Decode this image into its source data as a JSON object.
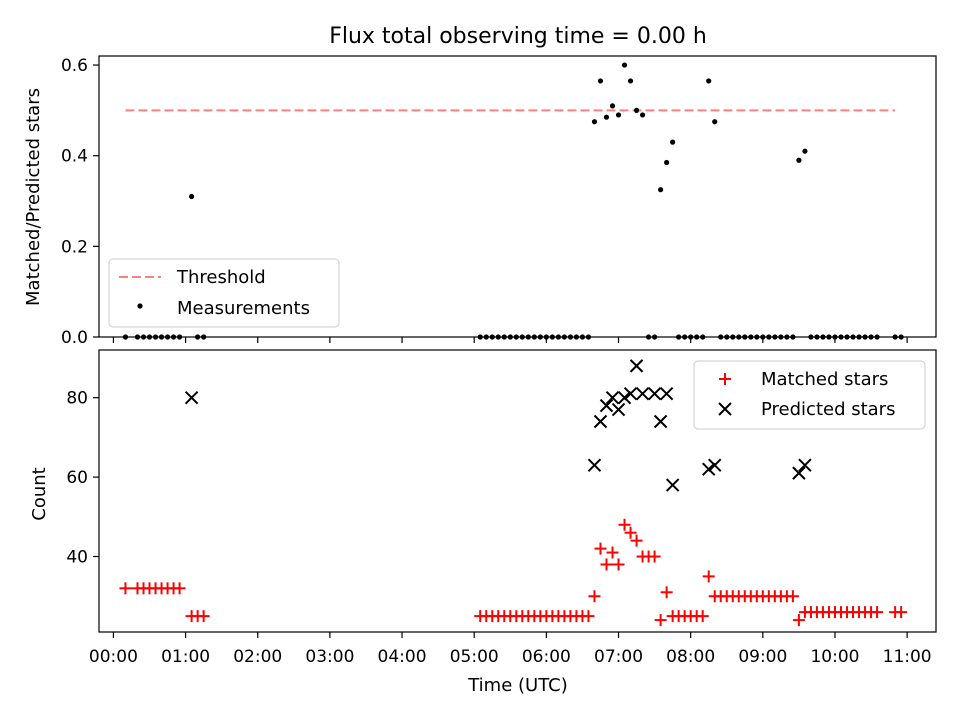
{
  "chart_data": [
    {
      "type": "line",
      "title": "Flux total observing time = 0.00 h",
      "ylabel": "Matched/Predicted stars",
      "xlabel": "",
      "ylim": [
        0,
        0.62
      ],
      "xlim": [
        "23:48",
        "11:24"
      ],
      "yticks": [
        "0.0",
        "0.2",
        "0.4",
        "0.6"
      ],
      "legend_position": "lower-left",
      "grid": false,
      "series": [
        {
          "name": "Threshold",
          "style": "dashed-line",
          "color": "#ff7f7f",
          "points": [
            [
              "00:10",
              0.5
            ],
            [
              "10:50",
              0.5
            ]
          ]
        },
        {
          "name": "Measurements",
          "style": "scatter-dot",
          "color": "#000000",
          "points": [
            [
              "00:10",
              0
            ],
            [
              "00:20",
              0
            ],
            [
              "00:25",
              0
            ],
            [
              "00:30",
              0
            ],
            [
              "00:35",
              0
            ],
            [
              "00:40",
              0
            ],
            [
              "00:45",
              0
            ],
            [
              "00:50",
              0
            ],
            [
              "00:55",
              0
            ],
            [
              "01:05",
              0.31
            ],
            [
              "01:10",
              0
            ],
            [
              "01:15",
              0
            ],
            [
              "05:05",
              0
            ],
            [
              "05:10",
              0
            ],
            [
              "05:15",
              0
            ],
            [
              "05:20",
              0
            ],
            [
              "05:25",
              0
            ],
            [
              "05:30",
              0
            ],
            [
              "05:35",
              0
            ],
            [
              "05:40",
              0
            ],
            [
              "05:45",
              0
            ],
            [
              "05:50",
              0
            ],
            [
              "05:55",
              0
            ],
            [
              "06:00",
              0
            ],
            [
              "06:05",
              0
            ],
            [
              "06:10",
              0
            ],
            [
              "06:15",
              0
            ],
            [
              "06:20",
              0
            ],
            [
              "06:25",
              0
            ],
            [
              "06:30",
              0
            ],
            [
              "06:35",
              0
            ],
            [
              "06:40",
              0.475
            ],
            [
              "06:45",
              0.565
            ],
            [
              "06:50",
              0.485
            ],
            [
              "06:55",
              0.51
            ],
            [
              "07:00",
              0.49
            ],
            [
              "07:05",
              0.6
            ],
            [
              "07:10",
              0.565
            ],
            [
              "07:15",
              0.5
            ],
            [
              "07:20",
              0.49
            ],
            [
              "07:25",
              0
            ],
            [
              "07:30",
              0
            ],
            [
              "07:35",
              0.325
            ],
            [
              "07:40",
              0.385
            ],
            [
              "07:45",
              0.43
            ],
            [
              "07:50",
              0
            ],
            [
              "07:55",
              0
            ],
            [
              "08:00",
              0
            ],
            [
              "08:05",
              0
            ],
            [
              "08:10",
              0
            ],
            [
              "08:15",
              0.565
            ],
            [
              "08:20",
              0.475
            ],
            [
              "08:25",
              0
            ],
            [
              "08:30",
              0
            ],
            [
              "08:35",
              0
            ],
            [
              "08:40",
              0
            ],
            [
              "08:45",
              0
            ],
            [
              "08:50",
              0
            ],
            [
              "08:55",
              0
            ],
            [
              "09:00",
              0
            ],
            [
              "09:05",
              0
            ],
            [
              "09:10",
              0
            ],
            [
              "09:15",
              0
            ],
            [
              "09:20",
              0
            ],
            [
              "09:25",
              0
            ],
            [
              "09:30",
              0.39
            ],
            [
              "09:35",
              0.41
            ],
            [
              "09:40",
              0
            ],
            [
              "09:45",
              0
            ],
            [
              "09:50",
              0
            ],
            [
              "09:55",
              0
            ],
            [
              "10:00",
              0
            ],
            [
              "10:05",
              0
            ],
            [
              "10:10",
              0
            ],
            [
              "10:15",
              0
            ],
            [
              "10:20",
              0
            ],
            [
              "10:25",
              0
            ],
            [
              "10:30",
              0
            ],
            [
              "10:35",
              0
            ],
            [
              "10:50",
              0
            ],
            [
              "10:55",
              0
            ]
          ]
        }
      ]
    },
    {
      "type": "scatter",
      "title": "",
      "ylabel": "Count",
      "xlabel": "Time (UTC)",
      "ylim": [
        21,
        92
      ],
      "xlim": [
        "23:48",
        "11:24"
      ],
      "yticks": [
        "40",
        "60",
        "80"
      ],
      "xticks": [
        "00:00",
        "01:00",
        "02:00",
        "03:00",
        "04:00",
        "05:00",
        "06:00",
        "07:00",
        "08:00",
        "09:00",
        "10:00",
        "11:00"
      ],
      "legend_position": "upper-right",
      "grid": false,
      "series": [
        {
          "name": "Matched stars",
          "marker": "plus",
          "color": "#ff0000",
          "points": [
            [
              "00:10",
              32
            ],
            [
              "00:20",
              32
            ],
            [
              "00:25",
              32
            ],
            [
              "00:30",
              32
            ],
            [
              "00:35",
              32
            ],
            [
              "00:40",
              32
            ],
            [
              "00:45",
              32
            ],
            [
              "00:50",
              32
            ],
            [
              "00:55",
              32
            ],
            [
              "01:05",
              25
            ],
            [
              "01:10",
              25
            ],
            [
              "01:15",
              25
            ],
            [
              "05:05",
              25
            ],
            [
              "05:10",
              25
            ],
            [
              "05:15",
              25
            ],
            [
              "05:20",
              25
            ],
            [
              "05:25",
              25
            ],
            [
              "05:30",
              25
            ],
            [
              "05:35",
              25
            ],
            [
              "05:40",
              25
            ],
            [
              "05:45",
              25
            ],
            [
              "05:50",
              25
            ],
            [
              "05:55",
              25
            ],
            [
              "06:00",
              25
            ],
            [
              "06:05",
              25
            ],
            [
              "06:10",
              25
            ],
            [
              "06:15",
              25
            ],
            [
              "06:20",
              25
            ],
            [
              "06:25",
              25
            ],
            [
              "06:30",
              25
            ],
            [
              "06:35",
              25
            ],
            [
              "06:40",
              30
            ],
            [
              "06:45",
              42
            ],
            [
              "06:50",
              38
            ],
            [
              "06:55",
              41
            ],
            [
              "07:00",
              38
            ],
            [
              "07:05",
              48
            ],
            [
              "07:10",
              46
            ],
            [
              "07:15",
              44
            ],
            [
              "07:20",
              40
            ],
            [
              "07:25",
              40
            ],
            [
              "07:30",
              40
            ],
            [
              "07:35",
              24
            ],
            [
              "07:40",
              31
            ],
            [
              "07:45",
              25
            ],
            [
              "07:50",
              25
            ],
            [
              "07:55",
              25
            ],
            [
              "08:00",
              25
            ],
            [
              "08:05",
              25
            ],
            [
              "08:10",
              25
            ],
            [
              "08:15",
              35
            ],
            [
              "08:20",
              30
            ],
            [
              "08:25",
              30
            ],
            [
              "08:30",
              30
            ],
            [
              "08:35",
              30
            ],
            [
              "08:40",
              30
            ],
            [
              "08:45",
              30
            ],
            [
              "08:50",
              30
            ],
            [
              "08:55",
              30
            ],
            [
              "09:00",
              30
            ],
            [
              "09:05",
              30
            ],
            [
              "09:10",
              30
            ],
            [
              "09:15",
              30
            ],
            [
              "09:20",
              30
            ],
            [
              "09:25",
              30
            ],
            [
              "09:30",
              24
            ],
            [
              "09:35",
              26
            ],
            [
              "09:40",
              26
            ],
            [
              "09:45",
              26
            ],
            [
              "09:50",
              26
            ],
            [
              "09:55",
              26
            ],
            [
              "10:00",
              26
            ],
            [
              "10:05",
              26
            ],
            [
              "10:10",
              26
            ],
            [
              "10:15",
              26
            ],
            [
              "10:20",
              26
            ],
            [
              "10:25",
              26
            ],
            [
              "10:30",
              26
            ],
            [
              "10:35",
              26
            ],
            [
              "10:50",
              26
            ],
            [
              "10:55",
              26
            ]
          ]
        },
        {
          "name": "Predicted stars",
          "marker": "x",
          "color": "#000000",
          "points": [
            [
              "01:05",
              80
            ],
            [
              "06:40",
              63
            ],
            [
              "06:45",
              74
            ],
            [
              "06:50",
              78
            ],
            [
              "06:55",
              80
            ],
            [
              "07:00",
              77
            ],
            [
              "07:05",
              80
            ],
            [
              "07:10",
              81
            ],
            [
              "07:15",
              88
            ],
            [
              "07:20",
              81
            ],
            [
              "07:30",
              81
            ],
            [
              "07:35",
              74
            ],
            [
              "07:40",
              81
            ],
            [
              "07:45",
              58
            ],
            [
              "08:15",
              62
            ],
            [
              "08:20",
              63
            ],
            [
              "09:30",
              61
            ],
            [
              "09:35",
              63
            ]
          ]
        }
      ]
    }
  ]
}
